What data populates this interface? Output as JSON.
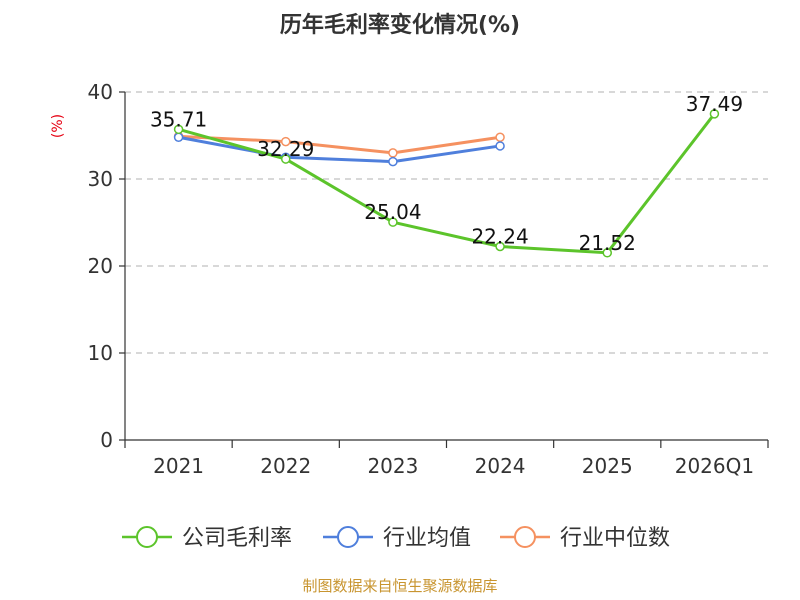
{
  "chart_data": {
    "type": "line",
    "title": "历年毛利率变化情况(%)",
    "ylabel": "(%)",
    "xlabel": "",
    "categories": [
      "2021",
      "2022",
      "2023",
      "2024",
      "2025",
      "2026Q1"
    ],
    "ylim": [
      0,
      40
    ],
    "yticks": [
      0,
      10,
      20,
      30,
      40
    ],
    "grid": true,
    "legend_position": "bottom",
    "series": [
      {
        "name": "公司毛利率",
        "color": "#5cc42b",
        "values": [
          35.71,
          32.29,
          25.04,
          22.24,
          21.52,
          37.49
        ],
        "labels": [
          "35.71",
          "32.29",
          "25.04",
          "22.24",
          "21.52",
          "37.49"
        ]
      },
      {
        "name": "行业均值",
        "color": "#4f7fdc",
        "values": [
          34.8,
          32.5,
          32.0,
          33.8,
          null,
          null
        ]
      },
      {
        "name": "行业中位数",
        "color": "#f59160",
        "values": [
          34.9,
          34.3,
          33.0,
          34.8,
          null,
          null
        ]
      }
    ]
  },
  "footer": {
    "source": "制图数据来自恒生聚源数据库"
  },
  "colors": {
    "title": "#333333",
    "axis": "#333333",
    "grid": "#cccccc",
    "ylabel": "#e60012",
    "source": "#c89530"
  }
}
